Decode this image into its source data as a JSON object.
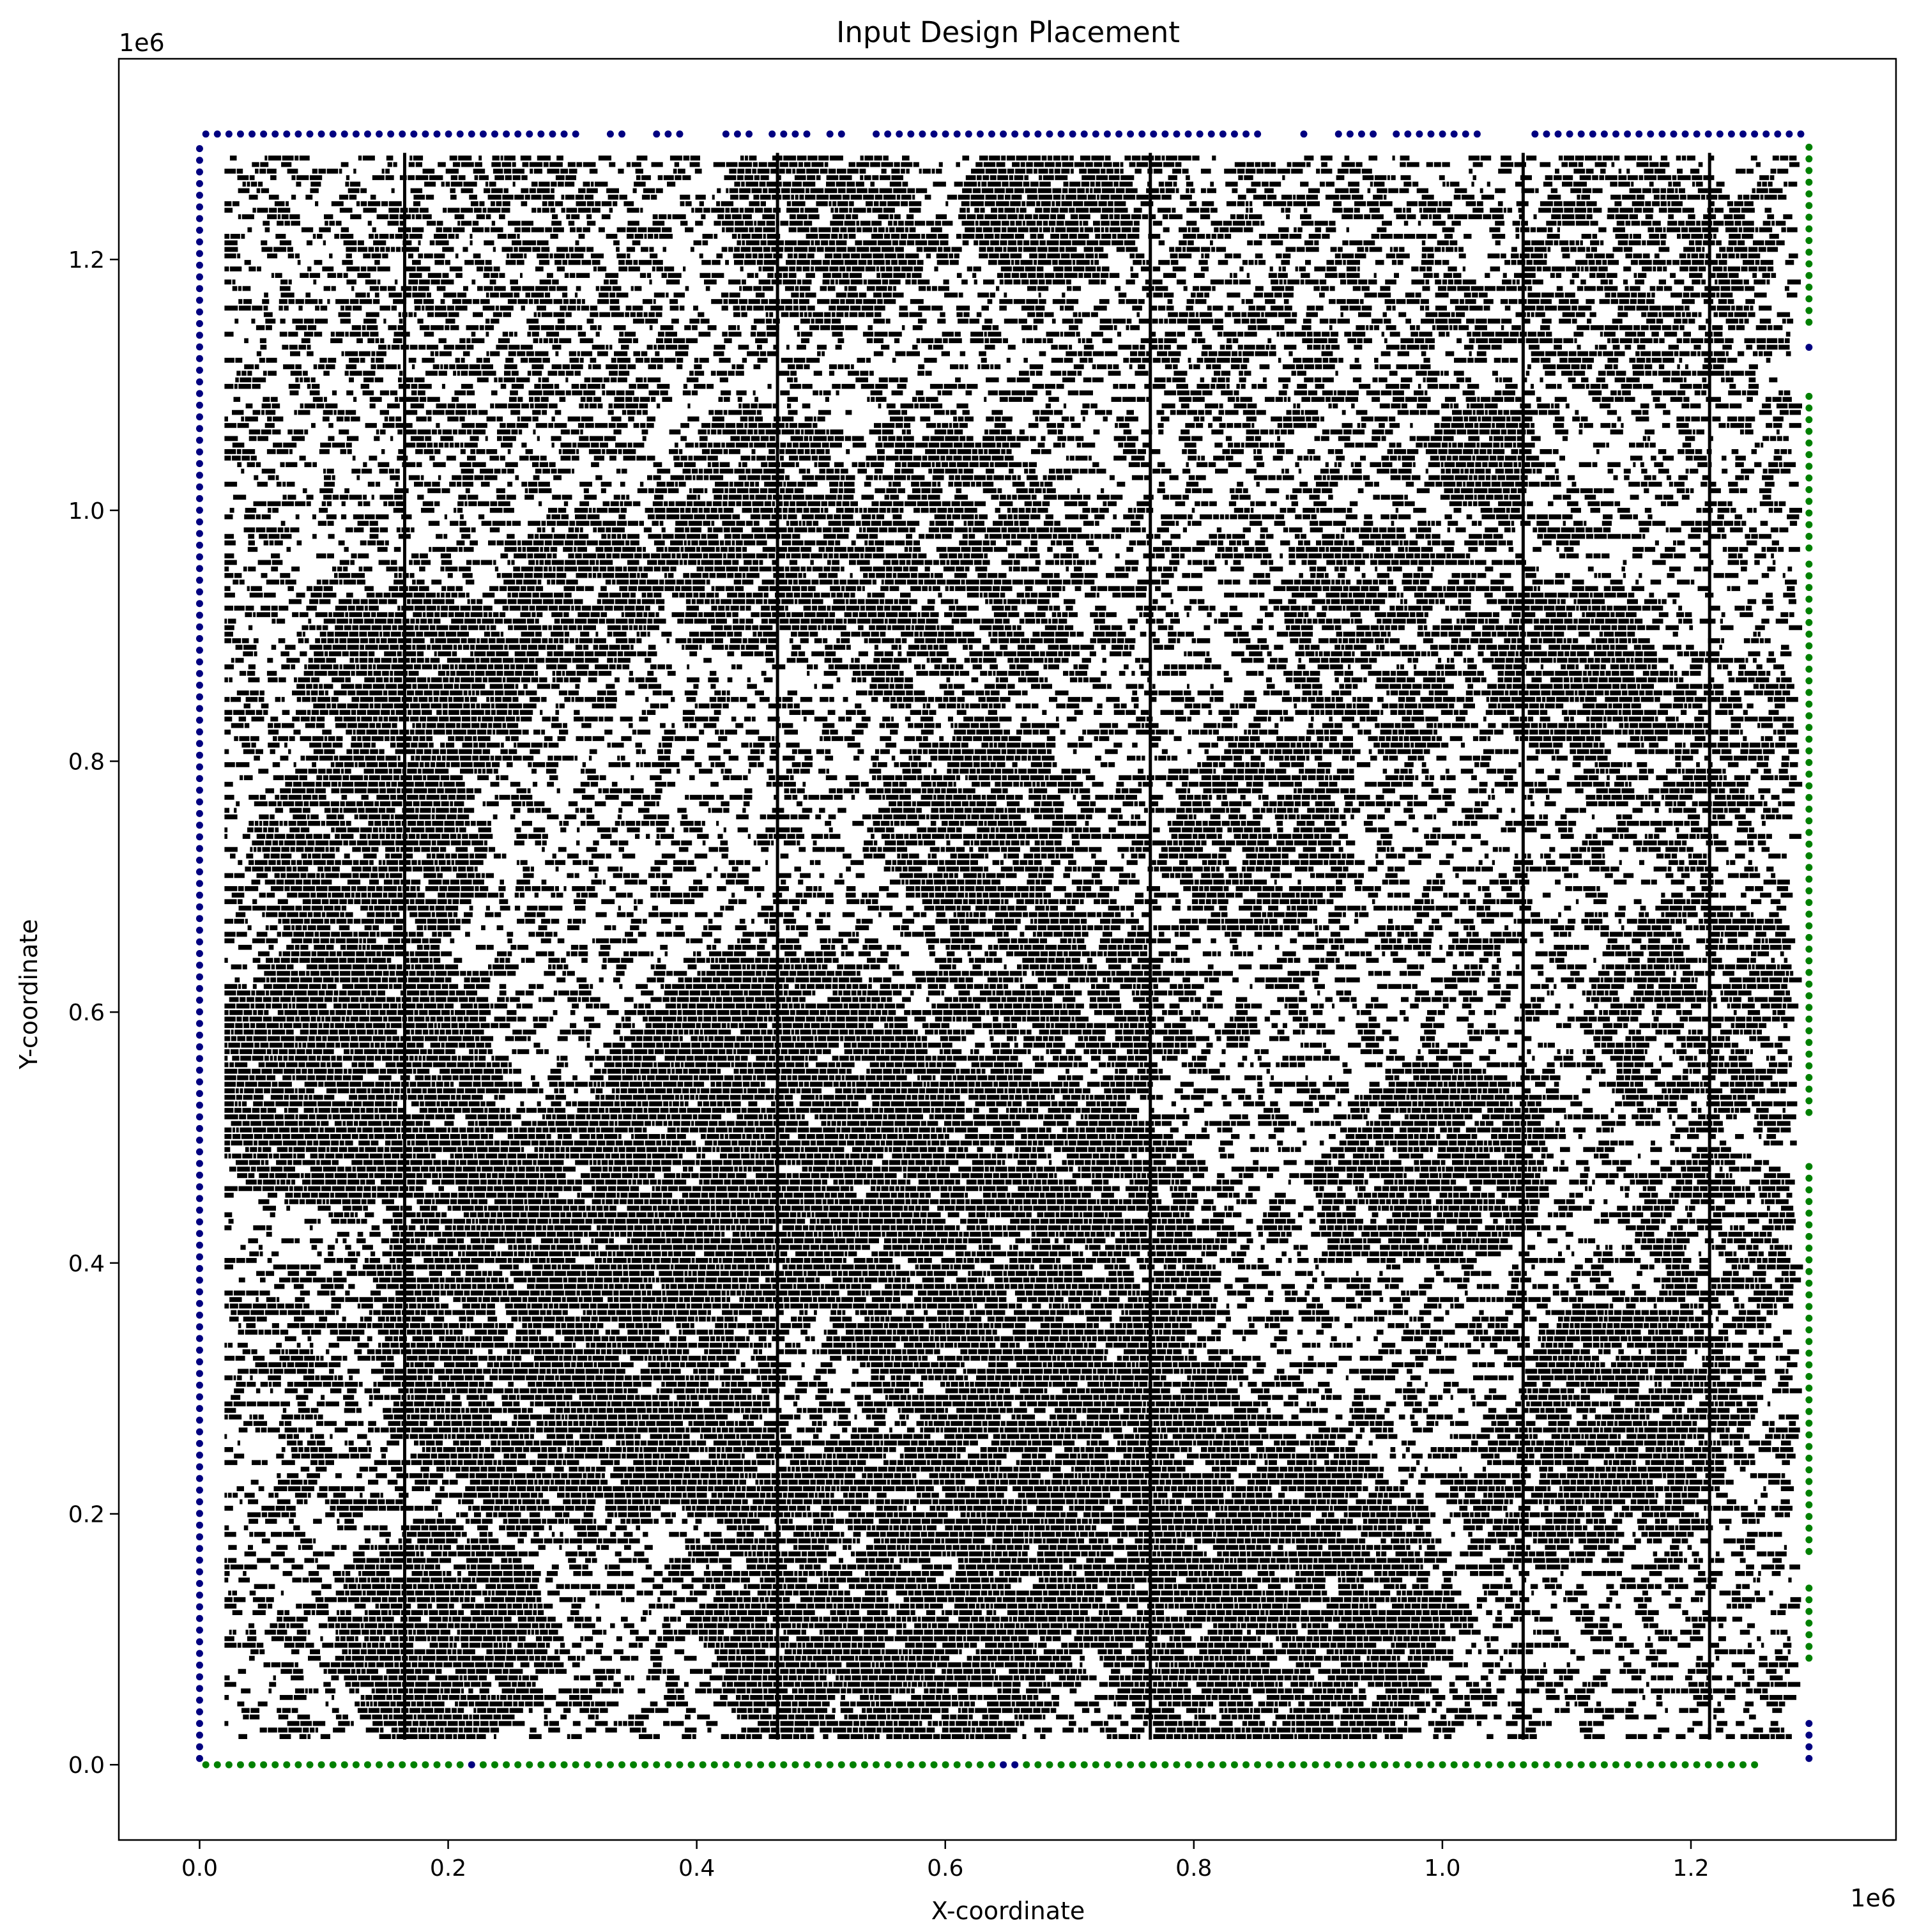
{
  "chart_data": {
    "type": "scatter",
    "title": "Input Design Placement",
    "xlabel": "X-coordinate",
    "ylabel": "Y-coordinate",
    "x_offset_label": "1e6",
    "y_offset_label": "1e6",
    "xlim": [
      -0.065,
      1.365
    ],
    "ylim": [
      -0.06,
      1.36
    ],
    "xticks": [
      0.0,
      0.2,
      0.4,
      0.6,
      0.8,
      1.0,
      1.2
    ],
    "xtick_labels": [
      "0.0",
      "0.2",
      "0.4",
      "0.6",
      "0.8",
      "1.0",
      "1.2"
    ],
    "yticks": [
      0.0,
      0.2,
      0.4,
      0.6,
      0.8,
      1.0,
      1.2
    ],
    "ytick_labels": [
      "0.0",
      "0.2",
      "0.4",
      "0.6",
      "0.8",
      "1.0",
      "1.2"
    ],
    "grid": false,
    "colors": {
      "cells": "#000000",
      "io_pins_blue": "#000080",
      "io_pins_green": "#008000"
    },
    "vertical_lines_x": [
      0.165,
      0.465,
      0.765,
      1.065,
      1.215
    ],
    "cell_clusters": [
      {
        "cx": 0.12,
        "cy": 0.55,
        "r": 0.1,
        "density": 0.95
      },
      {
        "cx": 0.46,
        "cy": 0.5,
        "r": 0.13,
        "density": 0.95
      },
      {
        "cx": 0.72,
        "cy": 0.22,
        "r": 0.12,
        "density": 0.92
      },
      {
        "cx": 0.55,
        "cy": 0.12,
        "r": 0.13,
        "density": 0.9
      },
      {
        "cx": 0.3,
        "cy": 0.35,
        "r": 0.15,
        "density": 0.9
      },
      {
        "cx": 0.19,
        "cy": 0.1,
        "r": 0.08,
        "density": 0.92
      },
      {
        "cx": 0.86,
        "cy": 0.11,
        "r": 0.12,
        "density": 0.9
      },
      {
        "cx": 0.65,
        "cy": 0.4,
        "r": 0.14,
        "density": 0.88
      },
      {
        "cx": 0.17,
        "cy": 0.85,
        "r": 0.08,
        "density": 0.9
      },
      {
        "cx": 0.13,
        "cy": 0.72,
        "r": 0.08,
        "density": 0.88
      },
      {
        "cx": 0.68,
        "cy": 1.24,
        "r": 0.06,
        "density": 0.95
      },
      {
        "cx": 0.5,
        "cy": 1.22,
        "r": 0.07,
        "density": 0.85
      },
      {
        "cx": 0.45,
        "cy": 0.98,
        "r": 0.08,
        "density": 0.85
      },
      {
        "cx": 0.3,
        "cy": 0.93,
        "r": 0.06,
        "density": 0.85
      },
      {
        "cx": 0.62,
        "cy": 0.75,
        "r": 0.07,
        "density": 0.85
      },
      {
        "cx": 0.85,
        "cy": 0.74,
        "r": 0.07,
        "density": 0.82
      },
      {
        "cx": 0.95,
        "cy": 0.45,
        "r": 0.05,
        "density": 0.85
      },
      {
        "cx": 1.0,
        "cy": 0.48,
        "r": 0.07,
        "density": 0.88
      },
      {
        "cx": 0.88,
        "cy": 0.17,
        "r": 0.08,
        "density": 0.85
      },
      {
        "cx": 1.03,
        "cy": 1.04,
        "r": 0.04,
        "density": 0.95
      },
      {
        "cx": 1.1,
        "cy": 0.87,
        "r": 0.06,
        "density": 0.9
      },
      {
        "cx": 1.15,
        "cy": 0.28,
        "r": 0.08,
        "density": 0.88
      },
      {
        "cx": 1.08,
        "cy": 0.22,
        "r": 0.06,
        "density": 0.8
      },
      {
        "cx": 0.4,
        "cy": 0.26,
        "r": 0.06,
        "density": 0.85
      },
      {
        "cx": 0.68,
        "cy": 0.6,
        "r": 0.09,
        "density": 0.8
      },
      {
        "cx": 0.6,
        "cy": 0.95,
        "r": 0.1,
        "density": 0.75
      },
      {
        "cx": 0.95,
        "cy": 0.9,
        "r": 0.08,
        "density": 0.7
      },
      {
        "cx": 1.2,
        "cy": 0.6,
        "r": 0.08,
        "density": 0.75
      },
      {
        "cx": 1.15,
        "cy": 1.18,
        "r": 0.09,
        "density": 0.7
      },
      {
        "cx": 0.25,
        "cy": 1.15,
        "r": 0.12,
        "density": 0.6
      },
      {
        "cx": 0.9,
        "cy": 1.15,
        "r": 0.12,
        "density": 0.55
      },
      {
        "cx": 1.2,
        "cy": 0.8,
        "r": 0.08,
        "density": 0.7
      },
      {
        "cx": 0.1,
        "cy": 0.32,
        "r": 0.07,
        "density": 0.6
      },
      {
        "cx": 1.22,
        "cy": 0.42,
        "r": 0.06,
        "density": 0.75
      }
    ],
    "cell_region": {
      "x": [
        0.02,
        1.28
      ],
      "y": [
        0.02,
        1.28
      ],
      "background_density": 0.42
    },
    "io_pins": {
      "left_x": 0.0,
      "left_y": [
        0.005,
        1.29
      ],
      "right_x": 1.295,
      "bottom_y": 0.0,
      "bottom_x": [
        0.005,
        1.26
      ],
      "top_y": 1.3,
      "top_x": [
        0.005,
        1.295
      ],
      "top_gaps": [
        [
          0.305,
          0.325
        ],
        [
          0.345,
          0.365
        ],
        [
          0.395,
          0.415
        ],
        [
          0.445,
          0.46
        ],
        [
          0.495,
          0.505
        ],
        [
          0.52,
          0.54
        ],
        [
          0.86,
          0.88
        ],
        [
          0.895,
          0.91
        ],
        [
          0.945,
          0.955
        ],
        [
          1.035,
          1.07
        ]
      ],
      "right_segments": [
        {
          "from": 0.005,
          "to": 0.04,
          "color": "blue"
        },
        {
          "from": 0.085,
          "to": 0.15,
          "color": "green"
        },
        {
          "from": 0.17,
          "to": 0.48,
          "color": "green"
        },
        {
          "from": 0.52,
          "to": 0.96,
          "color": "green"
        },
        {
          "from": 0.97,
          "to": 1.1,
          "color": "green"
        },
        {
          "from": 1.13,
          "to": 1.13,
          "color": "blue"
        },
        {
          "from": 1.15,
          "to": 1.29,
          "color": "green"
        }
      ],
      "bottom_blue_at": [
        0.22,
        0.645,
        0.65,
        0.655
      ]
    }
  }
}
